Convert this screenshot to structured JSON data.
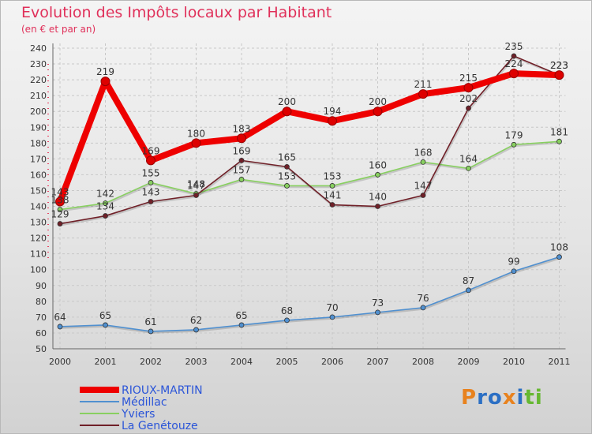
{
  "title": "Evolution des Impôts locaux par Habitant",
  "subtitle": "(en € et par an)",
  "logo": {
    "text": "Proxiti",
    "letters": [
      "P",
      "r",
      "o",
      "x",
      "i",
      "t",
      "i"
    ],
    "colors": [
      "#e8821e",
      "#2b6fc4",
      "#2b6fc4",
      "#e8821e",
      "#2b6fc4",
      "#66b832",
      "#66b832"
    ]
  },
  "chart_data": {
    "type": "line",
    "x": [
      "2000",
      "2001",
      "2002",
      "2003",
      "2004",
      "2005",
      "2006",
      "2007",
      "2008",
      "2009",
      "2010",
      "2011"
    ],
    "ylim": [
      50,
      240
    ],
    "yticks": [
      50,
      60,
      70,
      80,
      90,
      100,
      110,
      120,
      130,
      140,
      150,
      160,
      170,
      180,
      190,
      200,
      210,
      220,
      230,
      240
    ],
    "grid": true,
    "legend_position": "bottom-left",
    "series": [
      {
        "name": "RIOUX-MARTIN",
        "color": "#ee0000",
        "values": [
          143,
          219,
          169,
          180,
          183,
          200,
          194,
          200,
          211,
          215,
          224,
          223
        ],
        "labels": [
          "143",
          "219",
          "169",
          "180",
          "183",
          "200",
          "194",
          "200",
          "211",
          "215",
          "224",
          "223"
        ]
      },
      {
        "name": "Médillac",
        "color": "#5090d0",
        "values": [
          64,
          65,
          61,
          62,
          65,
          68,
          70,
          73,
          76,
          87,
          99,
          108
        ],
        "labels": [
          "64",
          "65",
          "61",
          "62",
          "65",
          "68",
          "70",
          "73",
          "76",
          "87",
          "99",
          "108"
        ]
      },
      {
        "name": "Yviers",
        "color": "#88d060",
        "values": [
          138,
          142,
          155,
          148,
          157,
          153,
          153,
          160,
          168,
          164,
          179,
          181
        ],
        "labels": [
          "138",
          "142",
          "155",
          "148",
          "157",
          "153",
          "153",
          "160",
          "168",
          "164",
          "179",
          "181"
        ]
      },
      {
        "name": "La Genétouze",
        "color": "#702028",
        "values": [
          129,
          134,
          143,
          147,
          169,
          165,
          141,
          140,
          147,
          202,
          235,
          223
        ],
        "labels": [
          "129",
          "134",
          "143",
          "147",
          "169",
          "165",
          "141",
          "140",
          "147",
          "202",
          "235",
          "223"
        ]
      }
    ]
  }
}
